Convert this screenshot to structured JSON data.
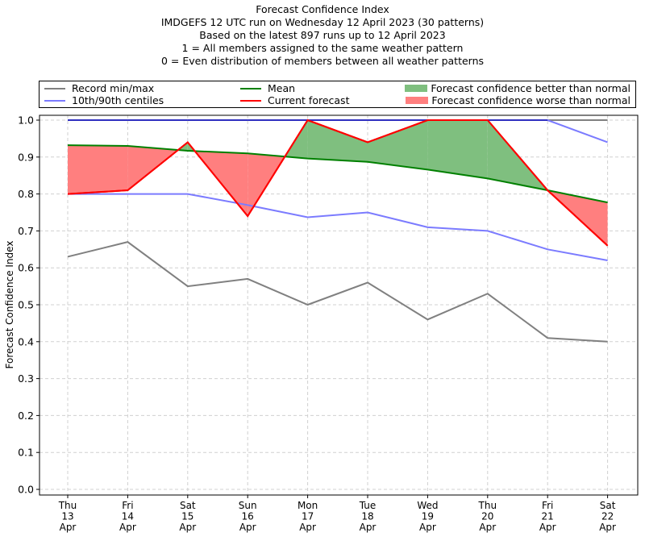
{
  "chart_data": {
    "type": "line",
    "title": "Forecast Confidence Index",
    "subtitles": [
      "IMDGEFS 12 UTC run on Wednesday 12 April 2023 (30 patterns)",
      "Based on the latest 897 runs up to 12 April 2023",
      "1 = All members assigned to the same weather pattern",
      "0 = Even distribution of members between all weather patterns"
    ],
    "xlabel": "",
    "ylabel": "Forecast Confidence Index",
    "ylim": [
      0.0,
      1.0
    ],
    "yticks": [
      "0.0",
      "0.1",
      "0.2",
      "0.3",
      "0.4",
      "0.5",
      "0.6",
      "0.7",
      "0.8",
      "0.9",
      "1.0"
    ],
    "grid": true,
    "categories": [
      [
        "Thu",
        "13",
        "Apr"
      ],
      [
        "Fri",
        "14",
        "Apr"
      ],
      [
        "Sat",
        "15",
        "Apr"
      ],
      [
        "Sun",
        "16",
        "Apr"
      ],
      [
        "Mon",
        "17",
        "Apr"
      ],
      [
        "Tue",
        "18",
        "Apr"
      ],
      [
        "Wed",
        "19",
        "Apr"
      ],
      [
        "Thu",
        "20",
        "Apr"
      ],
      [
        "Fri",
        "21",
        "Apr"
      ],
      [
        "Sat",
        "22",
        "Apr"
      ]
    ],
    "series": [
      {
        "name": "Record min",
        "color": "#808080",
        "values": [
          0.63,
          0.67,
          0.55,
          0.57,
          0.5,
          0.56,
          0.46,
          0.53,
          0.41,
          0.4
        ]
      },
      {
        "name": "Record max",
        "color": "#808080",
        "values": [
          1.0,
          1.0,
          1.0,
          1.0,
          1.0,
          1.0,
          1.0,
          1.0,
          1.0,
          1.0
        ]
      },
      {
        "name": "10th centile",
        "color": "#7b7bff",
        "values": [
          0.8,
          0.8,
          0.8,
          0.77,
          0.737,
          0.75,
          0.71,
          0.7,
          0.65,
          0.62
        ]
      },
      {
        "name": "90th centile",
        "color": "#7b7bff",
        "values": [
          1.0,
          1.0,
          1.0,
          1.0,
          1.0,
          1.0,
          1.0,
          1.0,
          1.0,
          0.94
        ]
      },
      {
        "name": "Mean",
        "color": "#008000",
        "values": [
          0.932,
          0.93,
          0.917,
          0.91,
          0.896,
          0.887,
          0.866,
          0.842,
          0.81,
          0.777
        ]
      },
      {
        "name": "Current forecast",
        "color": "#ff0000",
        "values": [
          0.8,
          0.81,
          0.94,
          0.74,
          1.0,
          0.94,
          1.0,
          1.0,
          0.81,
          0.66
        ]
      }
    ],
    "fill_colors": {
      "better": "#7fbf7f",
      "worse": "#ff7f7f"
    },
    "legend": {
      "placement": "top",
      "entries": [
        {
          "label": "Record min/max",
          "kind": "line",
          "color": "#808080"
        },
        {
          "label": "10th/90th centiles",
          "kind": "line",
          "color": "#7b7bff"
        },
        {
          "label": "Mean",
          "kind": "line",
          "color": "#008000"
        },
        {
          "label": "Current forecast",
          "kind": "line",
          "color": "#ff0000"
        },
        {
          "label": "Forecast confidence better than normal",
          "kind": "patch",
          "color": "#7fbf7f"
        },
        {
          "label": "Forecast confidence worse than normal",
          "kind": "patch",
          "color": "#ff7f7f"
        }
      ]
    }
  }
}
